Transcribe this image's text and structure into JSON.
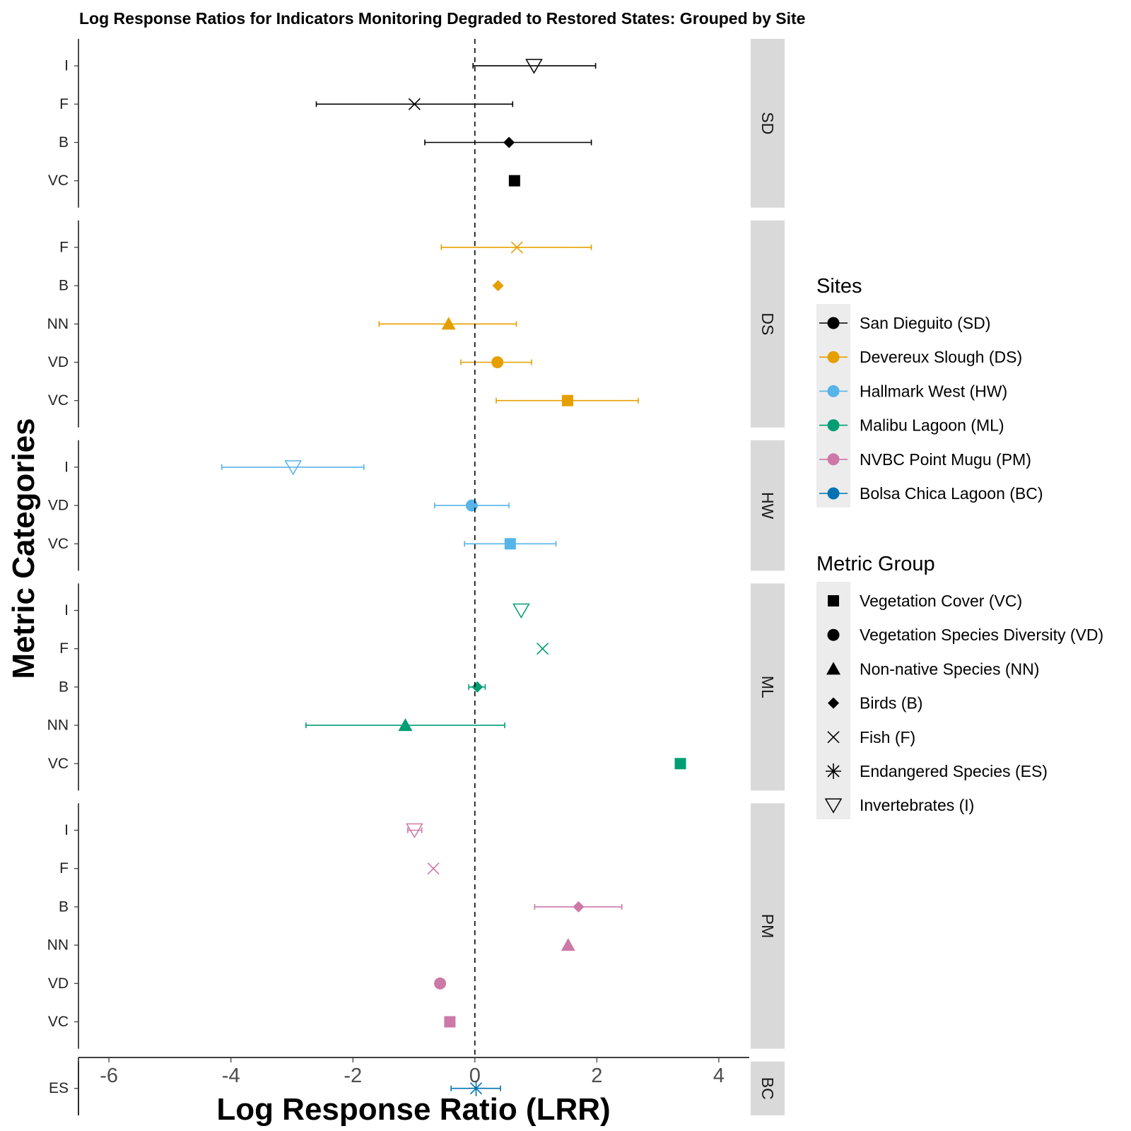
{
  "chart_data": {
    "type": "scatter",
    "subtype": "forest-plot",
    "title": "Log Response Ratios for Indicators Monitoring Degraded to Restored States: Grouped by Site",
    "xlabel": "Log Response Ratio (LRR)",
    "ylabel": "Metric Categories",
    "xlim": [
      -6.5,
      4.5
    ],
    "xticks": [
      -6,
      -4,
      -2,
      0,
      2,
      4
    ],
    "reference_line": {
      "x": 0,
      "style": "dashed"
    },
    "grid": false,
    "sites": [
      {
        "code": "SD",
        "name": "San Dieguito (SD)",
        "color": "#000000",
        "points": [
          {
            "category": "I",
            "lrr": 0.97,
            "ci": [
              -0.03,
              1.98
            ]
          },
          {
            "category": "F",
            "lrr": -0.99,
            "ci": [
              -2.6,
              0.62
            ]
          },
          {
            "category": "B",
            "lrr": 0.56,
            "ci": [
              -0.82,
              1.91
            ]
          },
          {
            "category": "VC",
            "lrr": 0.65,
            "ci": null
          }
        ]
      },
      {
        "code": "DS",
        "name": "Devereux Slough (DS)",
        "color": "#E69F00",
        "points": [
          {
            "category": "F",
            "lrr": 0.69,
            "ci": [
              -0.55,
              1.91
            ]
          },
          {
            "category": "B",
            "lrr": 0.38,
            "ci": null
          },
          {
            "category": "NN",
            "lrr": -0.43,
            "ci": [
              -1.57,
              0.68
            ]
          },
          {
            "category": "VD",
            "lrr": 0.37,
            "ci": [
              -0.23,
              0.93
            ]
          },
          {
            "category": "VC",
            "lrr": 1.52,
            "ci": [
              0.35,
              2.68
            ]
          }
        ]
      },
      {
        "code": "HW",
        "name": "Hallmark West (HW)",
        "color": "#56B4E9",
        "points": [
          {
            "category": "I",
            "lrr": -2.98,
            "ci": [
              -4.15,
              -1.82
            ]
          },
          {
            "category": "VD",
            "lrr": -0.05,
            "ci": [
              -0.66,
              0.56
            ]
          },
          {
            "category": "VC",
            "lrr": 0.58,
            "ci": [
              -0.17,
              1.33
            ]
          }
        ]
      },
      {
        "code": "ML",
        "name": "Malibu Lagoon (ML)",
        "color": "#009E73",
        "points": [
          {
            "category": "I",
            "lrr": 0.76,
            "ci": null
          },
          {
            "category": "F",
            "lrr": 1.11,
            "ci": null
          },
          {
            "category": "B",
            "lrr": 0.04,
            "ci": [
              -0.1,
              0.17
            ]
          },
          {
            "category": "NN",
            "lrr": -1.14,
            "ci": [
              -2.77,
              0.49
            ]
          },
          {
            "category": "VC",
            "lrr": 3.37,
            "ci": null
          }
        ]
      },
      {
        "code": "PM",
        "name": "NVBC Point Mugu (PM)",
        "color": "#CC79A7",
        "points": [
          {
            "category": "I",
            "lrr": -0.99,
            "ci": [
              -1.1,
              -0.87
            ]
          },
          {
            "category": "F",
            "lrr": -0.68,
            "ci": null
          },
          {
            "category": "B",
            "lrr": 1.7,
            "ci": [
              0.98,
              2.41
            ]
          },
          {
            "category": "NN",
            "lrr": 1.53,
            "ci": null
          },
          {
            "category": "VD",
            "lrr": -0.57,
            "ci": null
          },
          {
            "category": "VC",
            "lrr": -0.41,
            "ci": null
          }
        ]
      },
      {
        "code": "BC",
        "name": "Bolsa Chica Lagoon (BC)",
        "color": "#0072B2",
        "points": [
          {
            "category": "ES",
            "lrr": 0.02,
            "ci": [
              -0.39,
              0.42
            ]
          }
        ]
      }
    ],
    "legend": {
      "placement": "right",
      "sites_title": "Sites",
      "metric_title": "Metric Group",
      "metric_groups": [
        {
          "code": "VC",
          "label": "Vegetation Cover (VC)",
          "shape": "square"
        },
        {
          "code": "VD",
          "label": "Vegetation Species Diversity (VD)",
          "shape": "circle"
        },
        {
          "code": "NN",
          "label": "Non-native Species (NN)",
          "shape": "triangle"
        },
        {
          "code": "B",
          "label": "Birds (B)",
          "shape": "diamond"
        },
        {
          "code": "F",
          "label": "Fish (F)",
          "shape": "cross"
        },
        {
          "code": "ES",
          "label": "Endangered Species (ES)",
          "shape": "asterisk"
        },
        {
          "code": "I",
          "label": "Invertebrates (I)",
          "shape": "triangle-down-open"
        }
      ]
    }
  }
}
